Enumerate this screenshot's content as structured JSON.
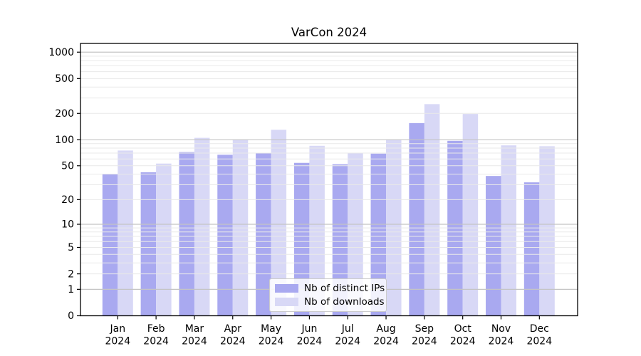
{
  "chart_data": {
    "type": "bar",
    "title": "VarCon 2024",
    "categories": [
      "Jan 2024",
      "Feb 2024",
      "Mar 2024",
      "Apr 2024",
      "May 2024",
      "Jun 2024",
      "Jul 2024",
      "Aug 2024",
      "Sep 2024",
      "Oct 2024",
      "Nov 2024",
      "Dec 2024"
    ],
    "series": [
      {
        "name": "Nb of distinct IPs",
        "color": "#a9a9f0",
        "values": [
          40,
          42,
          72,
          67,
          70,
          54,
          52,
          69,
          155,
          97,
          38,
          32
        ]
      },
      {
        "name": "Nb of downloads",
        "color": "#d8d8f6",
        "values": [
          75,
          53,
          105,
          100,
          130,
          85,
          70,
          100,
          255,
          197,
          86,
          84
        ]
      }
    ],
    "yscale": "log1p",
    "yticks": [
      0,
      1,
      2,
      5,
      10,
      20,
      50,
      100,
      200,
      500,
      1000
    ],
    "ylim": [
      0,
      1250
    ],
    "xlabel": "",
    "ylabel": "",
    "grid": "on",
    "legend_position": "lower center",
    "colors": {
      "major_grid": "#c4c4c4",
      "minor_grid": "#e9e9e9",
      "spine": "#000000",
      "background": "#ffffff"
    }
  }
}
